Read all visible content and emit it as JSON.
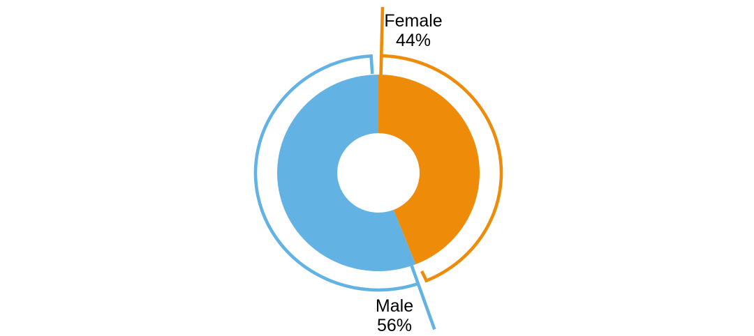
{
  "chart_data": {
    "type": "pie",
    "subtype": "donut-with-outer-highlight-arcs",
    "title": "",
    "categories": [
      "Female",
      "Male"
    ],
    "values": [
      44,
      56
    ],
    "unit": "%",
    "series": [
      {
        "name": "Female",
        "value": 44,
        "percent_label": "44%",
        "color": "#EE8C0A",
        "label_position": "top"
      },
      {
        "name": "Male",
        "value": 56,
        "percent_label": "56%",
        "color": "#62B2E3",
        "label_position": "bottom-right"
      }
    ],
    "start_angle_deg": 0,
    "direction": "clockwise",
    "hole": true,
    "legend": "none",
    "grid": "off",
    "background_color": "#FFFFFF",
    "label_text_color": "#000000"
  }
}
